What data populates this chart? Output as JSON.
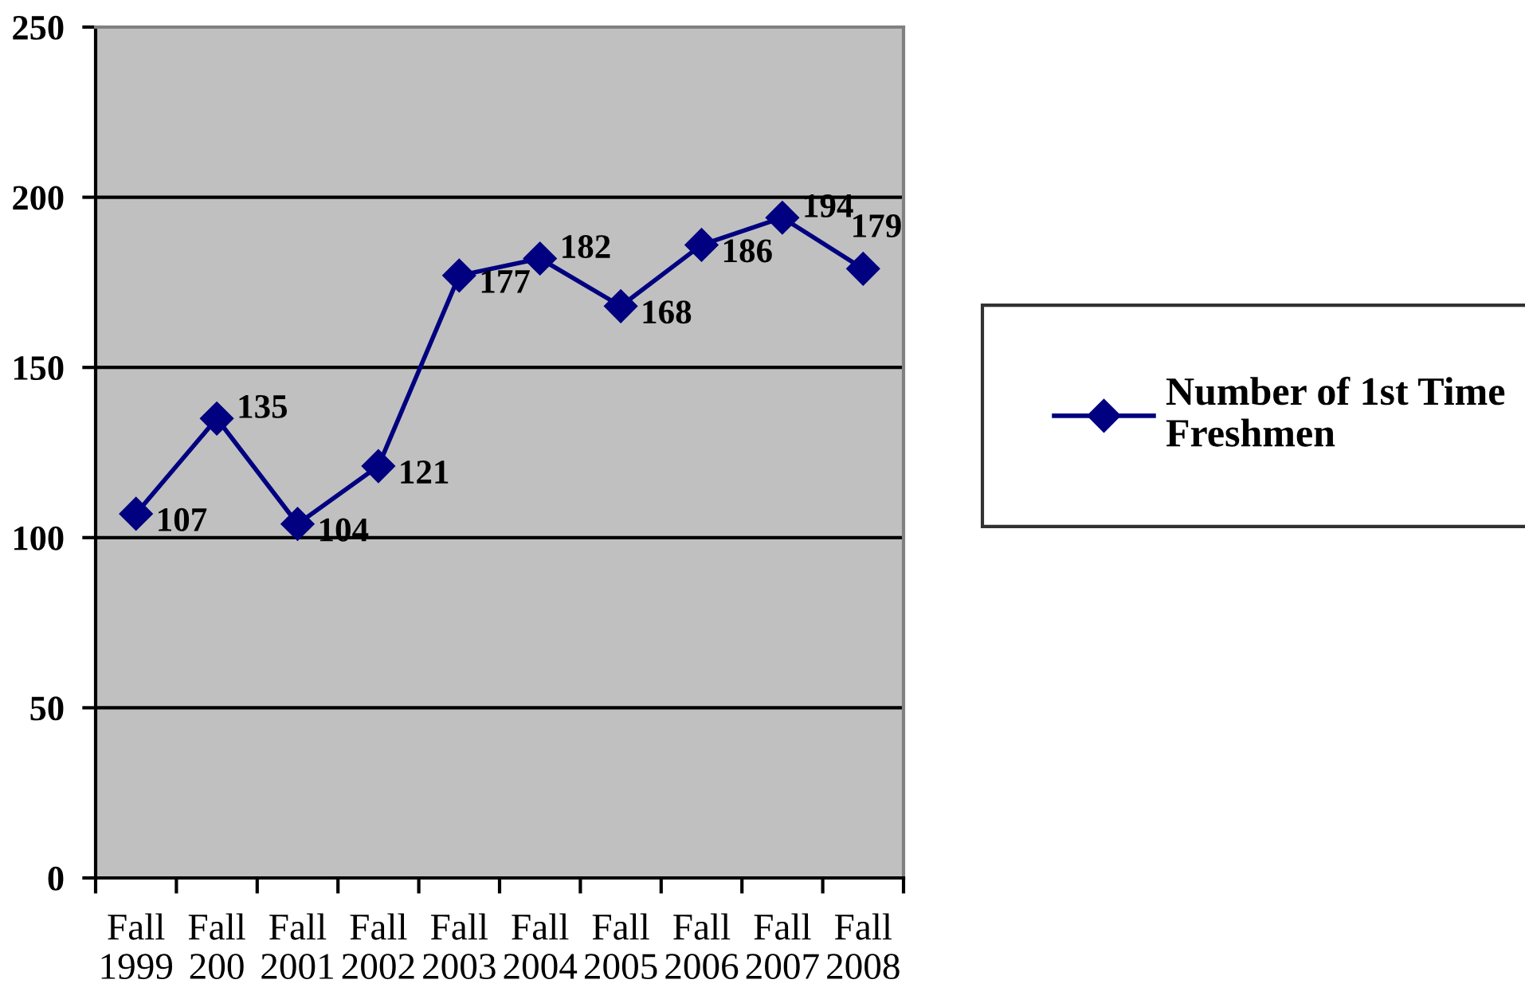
{
  "chart_data": {
    "type": "line",
    "categories": [
      "Fall 1999",
      "Fall 200",
      "Fall 2001",
      "Fall 2002",
      "Fall 2003",
      "Fall 2004",
      "Fall 2005",
      "Fall 2006",
      "Fall 2007",
      "Fall 2008"
    ],
    "series": [
      {
        "name": "Number of 1st Time Freshmen",
        "color": "#000080",
        "values": [
          107,
          135,
          104,
          121,
          177,
          182,
          168,
          186,
          194,
          179
        ]
      }
    ],
    "ylim": [
      0,
      250
    ],
    "yticks": [
      0,
      50,
      100,
      150,
      200,
      250
    ],
    "grid": "y",
    "legend": "right",
    "marker": "diamond",
    "line_style": "solid",
    "data_labels": true
  }
}
